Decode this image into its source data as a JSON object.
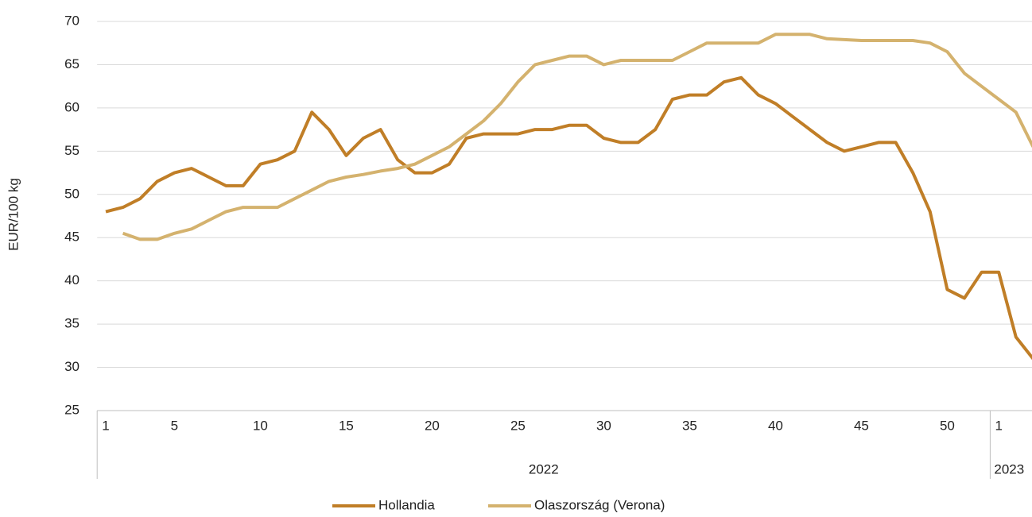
{
  "chart_data": {
    "type": "line",
    "y_label": "EUR/100 kg",
    "categories": [
      "1",
      null,
      null,
      null,
      "5",
      null,
      null,
      null,
      null,
      "10",
      null,
      null,
      null,
      null,
      "15",
      null,
      null,
      null,
      null,
      "20",
      null,
      null,
      null,
      null,
      "25",
      null,
      null,
      null,
      null,
      "30",
      null,
      null,
      null,
      null,
      "35",
      null,
      null,
      null,
      null,
      "40",
      null,
      null,
      null,
      null,
      "45",
      null,
      null,
      null,
      null,
      "50",
      null,
      null,
      "1",
      null,
      null
    ],
    "groups": [
      {
        "label": "2022",
        "count": 52
      },
      {
        "label": "2023",
        "count": 3
      }
    ],
    "series": [
      {
        "name": "Hollandia",
        "color": "#c07e27",
        "values": [
          48,
          48.5,
          49.5,
          51.5,
          52.5,
          53,
          52,
          51,
          51,
          53.5,
          54,
          55,
          59.5,
          57.5,
          54.5,
          56.5,
          57.5,
          54,
          52.5,
          52.5,
          53.5,
          56.5,
          57,
          57,
          57,
          57.5,
          57.5,
          58,
          58,
          56.5,
          56,
          56,
          57.5,
          61,
          61.5,
          61.5,
          63,
          63.5,
          61.5,
          60.5,
          59,
          57.5,
          56,
          55,
          55.5,
          56,
          56,
          52.5,
          48,
          39,
          38,
          41,
          41,
          33.5,
          31
        ]
      },
      {
        "name": "Olaszország (Verona)",
        "color": "#d4b26e",
        "values": [
          null,
          45.5,
          44.8,
          44.8,
          45.5,
          46,
          47,
          48,
          48.5,
          48.5,
          48.5,
          49.5,
          50.5,
          51.5,
          52,
          52.3,
          52.7,
          53,
          53.5,
          54.5,
          55.5,
          57,
          58.5,
          60.5,
          63,
          65,
          65.5,
          66,
          66,
          65,
          65.5,
          65.5,
          65.5,
          65.5,
          66.5,
          67.5,
          67.5,
          67.5,
          67.5,
          68.5,
          68.5,
          68.5,
          68,
          67.9,
          67.8,
          67.8,
          67.8,
          67.8,
          67.5,
          66.5,
          64,
          62.5,
          61,
          59.5,
          55.5
        ]
      }
    ],
    "ylim": [
      25,
      70
    ],
    "yticks": [
      25,
      30,
      35,
      40,
      45,
      50,
      55,
      60,
      65,
      70
    ],
    "grid": true,
    "legend": "bottom"
  }
}
